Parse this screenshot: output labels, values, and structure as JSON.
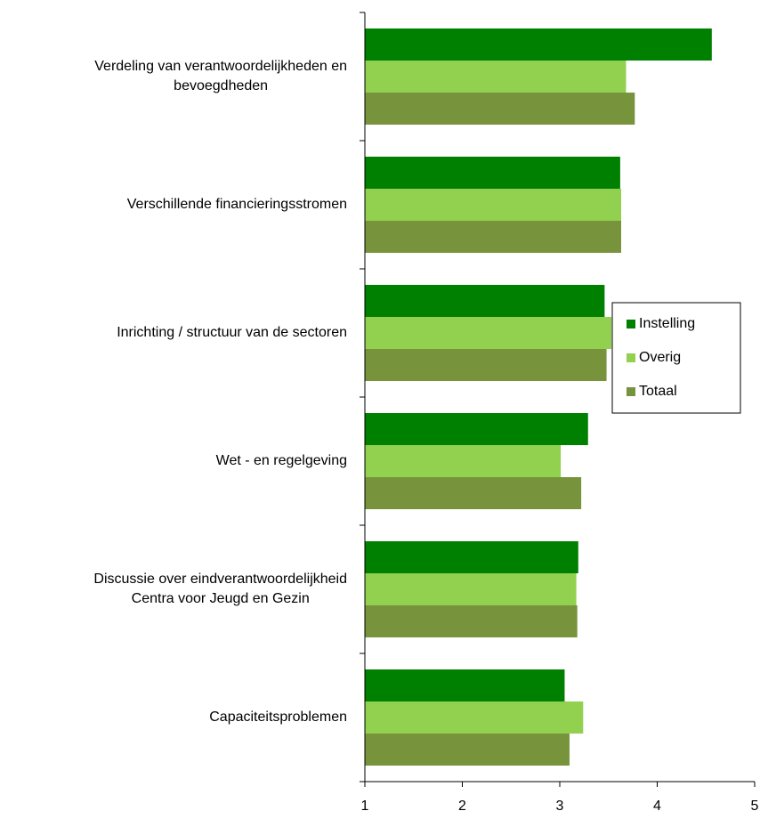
{
  "chart_data": {
    "type": "barh",
    "categories": [
      "Verdeling van verantwoordelijkheden en\nbevoegdheden",
      "Verschillende financieringsstromen",
      "Inrichting / structuur van de sectoren",
      "Wet - en regelgeving",
      "Discussie over eindverantwoordelijkheid\nCentra voor Jeugd en Gezin",
      "Capaciteitsproblemen"
    ],
    "series": [
      {
        "name": "Instelling",
        "color": "#008000",
        "values": [
          4.56,
          3.62,
          3.46,
          3.29,
          3.19,
          3.05
        ]
      },
      {
        "name": "Overig",
        "color": "#92d050",
        "values": [
          3.68,
          3.63,
          3.53,
          3.01,
          3.17,
          3.24
        ]
      },
      {
        "name": "Totaal",
        "color": "#77933c",
        "values": [
          3.77,
          3.63,
          3.48,
          3.22,
          3.18,
          3.1
        ]
      }
    ],
    "xlim": [
      1,
      5
    ],
    "xticks": [
      1,
      2,
      3,
      4,
      5
    ],
    "legend": "right"
  }
}
